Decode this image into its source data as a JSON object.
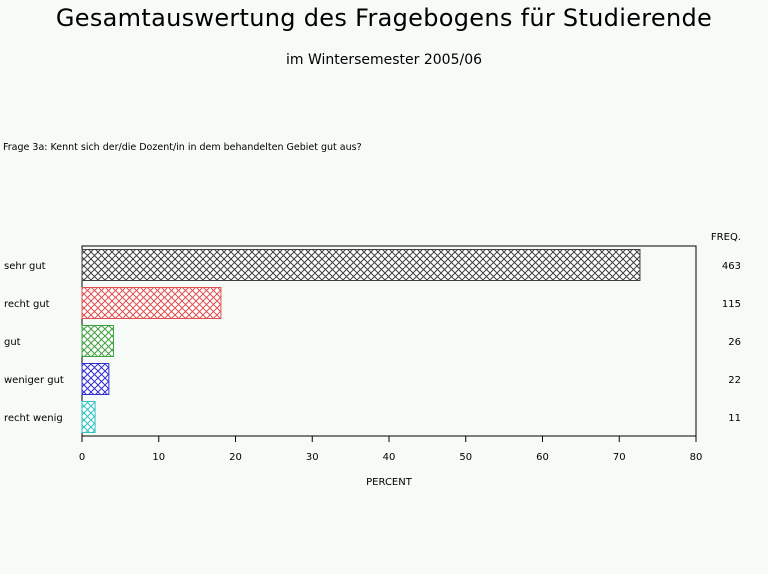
{
  "header": {
    "title": "Gesamtauswertung des Fragebogens für Studierende",
    "subtitle": "im Wintersemester 2005/06",
    "question": "Frage 3a: Kennt sich der/die  Dozent/in in dem behandelten Gebiet gut aus?"
  },
  "chart_data": {
    "type": "bar",
    "orientation": "horizontal",
    "categories": [
      "sehr gut",
      "recht gut",
      "gut",
      "weniger gut",
      "recht wenig"
    ],
    "values": [
      72.7,
      18.1,
      4.1,
      3.5,
      1.7
    ],
    "freq": [
      463,
      115,
      26,
      22,
      11
    ],
    "freq_label": "FREQ.",
    "colors": [
      "#404040",
      "#e05050",
      "#40a040",
      "#3030d0",
      "#30c0c0"
    ],
    "xlabel": "PERCENT",
    "ylabel": "",
    "xlim": [
      0,
      80
    ],
    "xticks": [
      0,
      10,
      20,
      30,
      40,
      50,
      60,
      70,
      80
    ],
    "grid": false
  }
}
